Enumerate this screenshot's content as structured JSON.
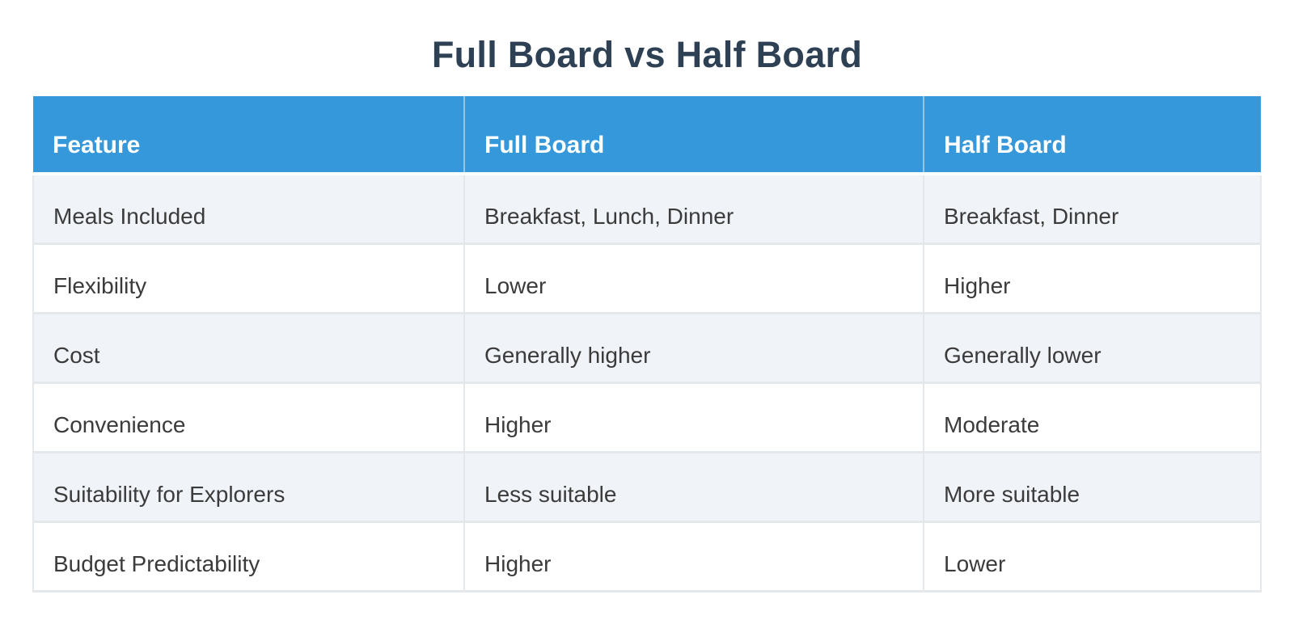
{
  "page": {
    "title": "Full Board vs Half Board"
  },
  "comparison_table": {
    "columns": [
      "Feature",
      "Full Board",
      "Half Board"
    ],
    "rows": [
      [
        "Meals Included",
        "Breakfast, Lunch, Dinner",
        "Breakfast, Dinner"
      ],
      [
        "Flexibility",
        "Lower",
        "Higher"
      ],
      [
        "Cost",
        "Generally higher",
        "Generally lower"
      ],
      [
        "Convenience",
        "Higher",
        "Moderate"
      ],
      [
        "Suitability for Explorers",
        "Less suitable",
        "More suitable"
      ],
      [
        "Budget Predictability",
        "Higher",
        "Lower"
      ]
    ]
  },
  "colors": {
    "header_bg": "#3498db",
    "header_text": "#ffffff",
    "title_text": "#2e4053",
    "alt_row_bg": "#f0f3f8",
    "body_text": "#3b3b3b",
    "grid_border": "#e5e8eb"
  }
}
